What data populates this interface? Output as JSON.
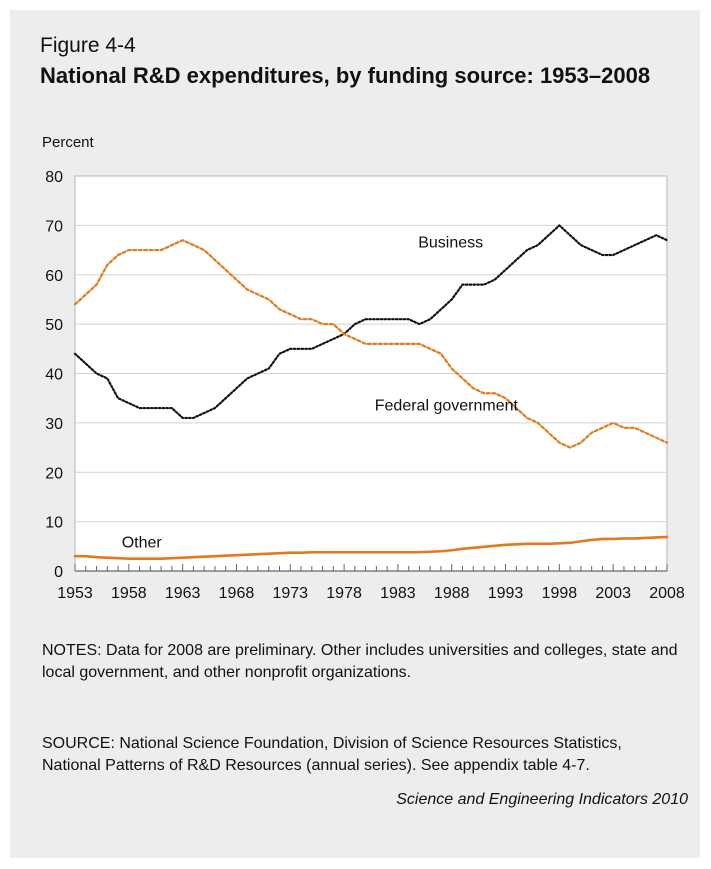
{
  "figure": {
    "label": "Figure 4-4",
    "title": "National R&D expenditures, by funding source: 1953–2008",
    "notes": "NOTES: Data for 2008 are preliminary. Other includes universities and colleges, state and local government, and other nonprofit organizations.",
    "source": "SOURCE: National Science Foundation, Division of Science Resources Statistics, National Patterns of R&D Resources (annual series). See appendix table 4-7.",
    "credit": "Science and Engineering Indicators 2010"
  },
  "chart_data": {
    "type": "line",
    "title": "National R&D expenditures, by funding source: 1953–2008",
    "ylabel": "Percent",
    "xlabel": "",
    "xlim": [
      1953,
      2008
    ],
    "ylim": [
      0,
      80
    ],
    "grid": true,
    "yticks": [
      0,
      10,
      20,
      30,
      40,
      50,
      60,
      70,
      80
    ],
    "xticks": [
      1953,
      1958,
      1963,
      1968,
      1973,
      1978,
      1983,
      1988,
      1993,
      1998,
      2003,
      2008
    ],
    "x": [
      1953,
      1954,
      1955,
      1956,
      1957,
      1958,
      1959,
      1960,
      1961,
      1962,
      1963,
      1964,
      1965,
      1966,
      1967,
      1968,
      1969,
      1970,
      1971,
      1972,
      1973,
      1974,
      1975,
      1976,
      1977,
      1978,
      1979,
      1980,
      1981,
      1982,
      1983,
      1984,
      1985,
      1986,
      1987,
      1988,
      1989,
      1990,
      1991,
      1992,
      1993,
      1994,
      1995,
      1996,
      1997,
      1998,
      1999,
      2000,
      2001,
      2002,
      2003,
      2004,
      2005,
      2006,
      2007,
      2008
    ],
    "series": [
      {
        "name": "Business",
        "color": "#111111",
        "style": "dotted",
        "values": [
          44,
          42,
          40,
          39,
          35,
          34,
          33,
          33,
          33,
          33,
          31,
          31,
          32,
          33,
          35,
          37,
          39,
          40,
          41,
          44,
          45,
          45,
          45,
          46,
          47,
          48,
          50,
          51,
          51,
          51,
          51,
          51,
          50,
          51,
          53,
          55,
          58,
          58,
          58,
          59,
          61,
          63,
          65,
          66,
          68,
          70,
          68,
          66,
          65,
          64,
          64,
          65,
          66,
          67,
          68,
          67
        ]
      },
      {
        "name": "Federal government",
        "color": "#e07a1f",
        "style": "dashed",
        "values": [
          54,
          56,
          58,
          62,
          64,
          65,
          65,
          65,
          65,
          66,
          67,
          66,
          65,
          63,
          61,
          59,
          57,
          56,
          55,
          53,
          52,
          51,
          51,
          50,
          50,
          48,
          47,
          46,
          46,
          46,
          46,
          46,
          46,
          45,
          44,
          41,
          39,
          37,
          36,
          36,
          35,
          33,
          31,
          30,
          28,
          26,
          25,
          26,
          28,
          29,
          30,
          29,
          29,
          28,
          27,
          26
        ]
      },
      {
        "name": "Other",
        "color": "#e07a1f",
        "style": "solid",
        "values": [
          3,
          3,
          2.8,
          2.7,
          2.6,
          2.5,
          2.5,
          2.5,
          2.5,
          2.6,
          2.7,
          2.8,
          2.9,
          3,
          3.1,
          3.2,
          3.3,
          3.4,
          3.5,
          3.6,
          3.7,
          3.7,
          3.8,
          3.8,
          3.8,
          3.8,
          3.8,
          3.8,
          3.8,
          3.8,
          3.8,
          3.8,
          3.8,
          3.9,
          4,
          4.2,
          4.5,
          4.7,
          4.9,
          5.1,
          5.3,
          5.4,
          5.5,
          5.5,
          5.5,
          5.6,
          5.7,
          6,
          6.3,
          6.5,
          6.5,
          6.6,
          6.6,
          6.7,
          6.8,
          6.9
        ]
      }
    ]
  }
}
